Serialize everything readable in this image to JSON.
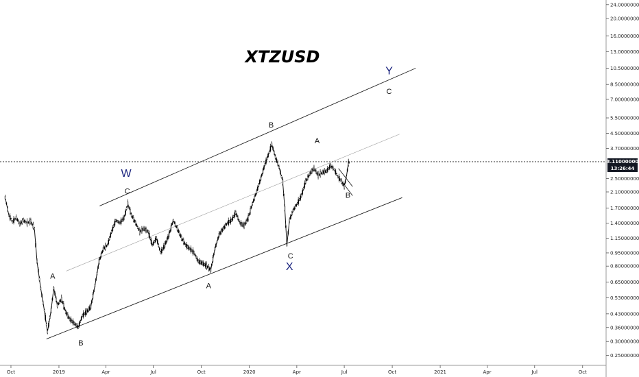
{
  "chart_data": {
    "type": "line",
    "title": "XTZUSD",
    "symbol": "XTZUSD",
    "y_scale": "log",
    "grid": false,
    "ylim": [
      0.22,
      25.5
    ],
    "xlim": [
      "2018-09-10",
      "2021-11-15"
    ],
    "x_ticks": [
      {
        "date": "2018-10-01",
        "label": "Oct"
      },
      {
        "date": "2019-01-01",
        "label": "2019"
      },
      {
        "date": "2019-04-01",
        "label": "Apr"
      },
      {
        "date": "2019-07-01",
        "label": "Jul"
      },
      {
        "date": "2019-10-01",
        "label": "Oct"
      },
      {
        "date": "2020-01-01",
        "label": "2020"
      },
      {
        "date": "2020-04-01",
        "label": "Apr"
      },
      {
        "date": "2020-07-01",
        "label": "Jul"
      },
      {
        "date": "2020-10-01",
        "label": "Oct"
      },
      {
        "date": "2021-01-01",
        "label": "2021"
      },
      {
        "date": "2021-04-01",
        "label": "Apr"
      },
      {
        "date": "2021-07-01",
        "label": "Jul"
      },
      {
        "date": "2021-10-01",
        "label": "Oct"
      }
    ],
    "y_ticks": [
      {
        "value": 24.0,
        "label": "24.00000000"
      },
      {
        "value": 20.0,
        "label": "20.00000000"
      },
      {
        "value": 16.0,
        "label": "16.00000000"
      },
      {
        "value": 13.0,
        "label": "13.00000000"
      },
      {
        "value": 10.5,
        "label": "10.50000000"
      },
      {
        "value": 8.5,
        "label": "8.50000000"
      },
      {
        "value": 7.0,
        "label": "7.00000000"
      },
      {
        "value": 5.5,
        "label": "5.50000000"
      },
      {
        "value": 4.5,
        "label": "4.50000000"
      },
      {
        "value": 3.7,
        "label": "3.70000000"
      },
      {
        "value": 2.5,
        "label": "2.50000000"
      },
      {
        "value": 2.1,
        "label": "2.10000000"
      },
      {
        "value": 1.7,
        "label": "1.70000000"
      },
      {
        "value": 1.4,
        "label": "1.40000000"
      },
      {
        "value": 1.15,
        "label": "1.15000000"
      },
      {
        "value": 0.95,
        "label": "0.95000000"
      },
      {
        "value": 0.8,
        "label": "0.80000000"
      },
      {
        "value": 0.65,
        "label": "0.65000000"
      },
      {
        "value": 0.53,
        "label": "0.53000000"
      },
      {
        "value": 0.43,
        "label": "0.43000000"
      },
      {
        "value": 0.36,
        "label": "0.36000000"
      },
      {
        "value": 0.3,
        "label": "0.30000000"
      },
      {
        "value": 0.25,
        "label": "0.25000000"
      }
    ],
    "current_price": {
      "value": 3.11,
      "label": "3.11000000",
      "countdown": "13:26:44"
    },
    "series": [
      {
        "style": "candles",
        "color": "#000000",
        "points": [
          {
            "x": "2018-09-20",
            "y": 1.95
          },
          {
            "x": "2018-09-27",
            "y": 1.55
          },
          {
            "x": "2018-10-04",
            "y": 1.42
          },
          {
            "x": "2018-10-11",
            "y": 1.5
          },
          {
            "x": "2018-10-18",
            "y": 1.38
          },
          {
            "x": "2018-10-25",
            "y": 1.45
          },
          {
            "x": "2018-11-01",
            "y": 1.4
          },
          {
            "x": "2018-11-08",
            "y": 1.43
          },
          {
            "x": "2018-11-15",
            "y": 1.3
          },
          {
            "x": "2018-11-20",
            "y": 0.85
          },
          {
            "x": "2018-11-27",
            "y": 0.6
          },
          {
            "x": "2018-12-04",
            "y": 0.45
          },
          {
            "x": "2018-12-10",
            "y": 0.34
          },
          {
            "x": "2018-12-17",
            "y": 0.45
          },
          {
            "x": "2018-12-22",
            "y": 0.6
          },
          {
            "x": "2018-12-29",
            "y": 0.48
          },
          {
            "x": "2019-01-06",
            "y": 0.52
          },
          {
            "x": "2019-01-14",
            "y": 0.44
          },
          {
            "x": "2019-01-22",
            "y": 0.4
          },
          {
            "x": "2019-01-30",
            "y": 0.38
          },
          {
            "x": "2019-02-07",
            "y": 0.36
          },
          {
            "x": "2019-02-15",
            "y": 0.42
          },
          {
            "x": "2019-02-23",
            "y": 0.44
          },
          {
            "x": "2019-03-03",
            "y": 0.47
          },
          {
            "x": "2019-03-11",
            "y": 0.62
          },
          {
            "x": "2019-03-19",
            "y": 0.85
          },
          {
            "x": "2019-03-27",
            "y": 1.0
          },
          {
            "x": "2019-04-04",
            "y": 1.05
          },
          {
            "x": "2019-04-12",
            "y": 1.25
          },
          {
            "x": "2019-04-20",
            "y": 1.45
          },
          {
            "x": "2019-04-28",
            "y": 1.4
          },
          {
            "x": "2019-05-06",
            "y": 1.5
          },
          {
            "x": "2019-05-13",
            "y": 1.8
          },
          {
            "x": "2019-05-20",
            "y": 1.55
          },
          {
            "x": "2019-05-28",
            "y": 1.4
          },
          {
            "x": "2019-06-05",
            "y": 1.25
          },
          {
            "x": "2019-06-13",
            "y": 1.3
          },
          {
            "x": "2019-06-21",
            "y": 1.25
          },
          {
            "x": "2019-06-29",
            "y": 1.05
          },
          {
            "x": "2019-07-07",
            "y": 1.15
          },
          {
            "x": "2019-07-15",
            "y": 0.95
          },
          {
            "x": "2019-07-23",
            "y": 1.05
          },
          {
            "x": "2019-07-31",
            "y": 1.2
          },
          {
            "x": "2019-08-08",
            "y": 1.45
          },
          {
            "x": "2019-08-16",
            "y": 1.3
          },
          {
            "x": "2019-08-24",
            "y": 1.15
          },
          {
            "x": "2019-09-01",
            "y": 1.05
          },
          {
            "x": "2019-09-09",
            "y": 1.0
          },
          {
            "x": "2019-09-17",
            "y": 0.95
          },
          {
            "x": "2019-09-25",
            "y": 0.85
          },
          {
            "x": "2019-10-03",
            "y": 0.83
          },
          {
            "x": "2019-10-11",
            "y": 0.8
          },
          {
            "x": "2019-10-19",
            "y": 0.76
          },
          {
            "x": "2019-10-27",
            "y": 1.0
          },
          {
            "x": "2019-11-04",
            "y": 1.2
          },
          {
            "x": "2019-11-12",
            "y": 1.3
          },
          {
            "x": "2019-11-20",
            "y": 1.4
          },
          {
            "x": "2019-11-28",
            "y": 1.45
          },
          {
            "x": "2019-12-06",
            "y": 1.6
          },
          {
            "x": "2019-12-14",
            "y": 1.4
          },
          {
            "x": "2019-12-22",
            "y": 1.35
          },
          {
            "x": "2019-12-30",
            "y": 1.5
          },
          {
            "x": "2020-01-07",
            "y": 1.8
          },
          {
            "x": "2020-01-15",
            "y": 2.1
          },
          {
            "x": "2020-01-23",
            "y": 2.5
          },
          {
            "x": "2020-01-31",
            "y": 3.0
          },
          {
            "x": "2020-02-08",
            "y": 3.5
          },
          {
            "x": "2020-02-13",
            "y": 3.9
          },
          {
            "x": "2020-02-20",
            "y": 3.3
          },
          {
            "x": "2020-02-27",
            "y": 2.9
          },
          {
            "x": "2020-03-05",
            "y": 2.4
          },
          {
            "x": "2020-03-09",
            "y": 1.7
          },
          {
            "x": "2020-03-13",
            "y": 1.05
          },
          {
            "x": "2020-03-18",
            "y": 1.45
          },
          {
            "x": "2020-03-25",
            "y": 1.65
          },
          {
            "x": "2020-04-02",
            "y": 1.8
          },
          {
            "x": "2020-04-10",
            "y": 2.0
          },
          {
            "x": "2020-04-18",
            "y": 2.4
          },
          {
            "x": "2020-04-26",
            "y": 2.65
          },
          {
            "x": "2020-05-04",
            "y": 2.85
          },
          {
            "x": "2020-05-12",
            "y": 2.6
          },
          {
            "x": "2020-05-20",
            "y": 2.7
          },
          {
            "x": "2020-05-28",
            "y": 2.75
          },
          {
            "x": "2020-06-05",
            "y": 2.95
          },
          {
            "x": "2020-06-12",
            "y": 2.8
          },
          {
            "x": "2020-06-19",
            "y": 2.55
          },
          {
            "x": "2020-06-26",
            "y": 2.4
          },
          {
            "x": "2020-07-01",
            "y": 2.25
          },
          {
            "x": "2020-07-05",
            "y": 2.55
          },
          {
            "x": "2020-07-09",
            "y": 3.05
          },
          {
            "x": "2020-07-11",
            "y": 3.11
          }
        ]
      }
    ],
    "trendlines": [
      {
        "name": "channel-upper",
        "start": {
          "x": "2019-03-20",
          "y": 1.75
        },
        "end": {
          "x": "2020-11-15",
          "y": 10.5
        }
      },
      {
        "name": "channel-mid",
        "start": {
          "x": "2019-01-15",
          "y": 0.75
        },
        "end": {
          "x": "2020-10-15",
          "y": 4.45
        }
      },
      {
        "name": "channel-lower",
        "start": {
          "x": "2018-12-08",
          "y": 0.31
        },
        "end": {
          "x": "2020-10-20",
          "y": 1.95
        }
      },
      {
        "name": "wedge-upper",
        "start": {
          "x": "2020-06-20",
          "y": 2.85
        },
        "end": {
          "x": "2020-07-17",
          "y": 2.25
        }
      },
      {
        "name": "wedge-lower",
        "start": {
          "x": "2020-06-20",
          "y": 2.55
        },
        "end": {
          "x": "2020-07-17",
          "y": 2.0
        }
      }
    ],
    "annotations": [
      {
        "text": "A",
        "x": "2018-12-20",
        "y": 0.68,
        "style": "minor"
      },
      {
        "text": "B",
        "x": "2019-02-12",
        "y": 0.285,
        "style": "minor"
      },
      {
        "text": "C",
        "x": "2019-05-12",
        "y": 2.05,
        "style": "minor"
      },
      {
        "text": "W",
        "x": "2019-05-10",
        "y": 2.55,
        "style": "major"
      },
      {
        "text": "A",
        "x": "2019-10-15",
        "y": 0.6,
        "style": "minor"
      },
      {
        "text": "B",
        "x": "2020-02-12",
        "y": 4.85,
        "style": "minor"
      },
      {
        "text": "C",
        "x": "2020-03-20",
        "y": 0.885,
        "style": "minor"
      },
      {
        "text": "X",
        "x": "2020-03-18",
        "y": 0.76,
        "style": "major"
      },
      {
        "text": "A",
        "x": "2020-05-10",
        "y": 3.95,
        "style": "minor"
      },
      {
        "text": "B",
        "x": "2020-07-08",
        "y": 1.95,
        "style": "minor"
      },
      {
        "text": "C",
        "x": "2020-09-25",
        "y": 7.5,
        "style": "minor"
      },
      {
        "text": "Y",
        "x": "2020-09-25",
        "y": 9.7,
        "style": "major"
      }
    ]
  }
}
